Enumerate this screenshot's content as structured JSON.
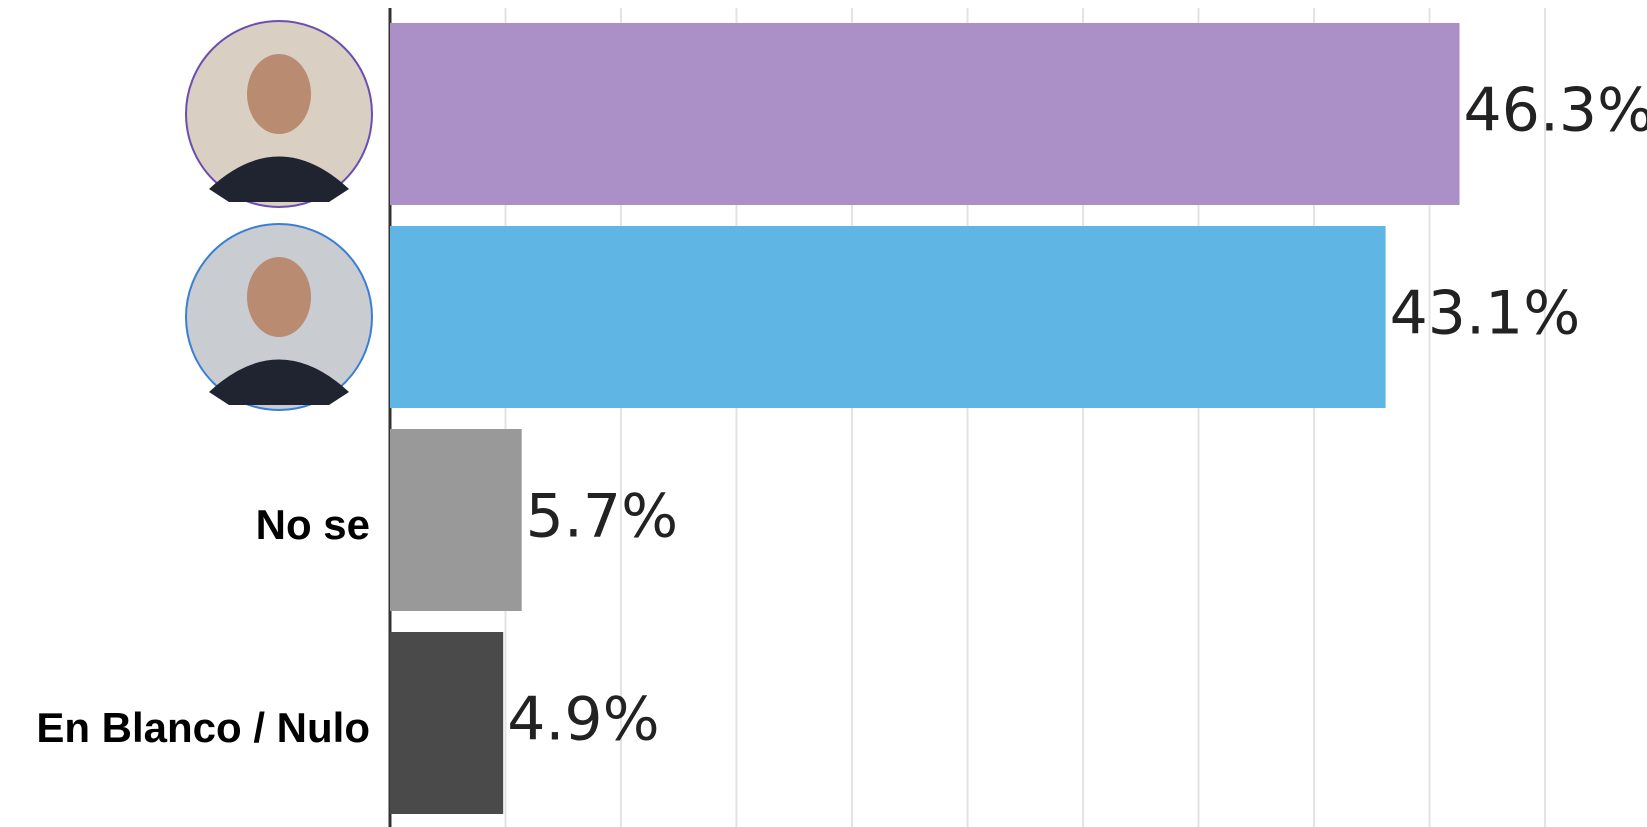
{
  "chart_data": {
    "type": "hbar",
    "categories": [
      null,
      null,
      "No se",
      "En Blanco / Nulo"
    ],
    "values": [
      46.3,
      43.1,
      5.7,
      4.9
    ],
    "value_labels": [
      "46.3%",
      "43.1%",
      "5.7%",
      "4.9%"
    ],
    "colors": [
      "#ab8fc7",
      "#5fb5e3",
      "#999999",
      "#4a4a4a"
    ],
    "xlim": [
      0,
      50
    ],
    "xticks": [
      0,
      5,
      10,
      15,
      20,
      25,
      30,
      35,
      40,
      45,
      50
    ],
    "grid": true
  }
}
